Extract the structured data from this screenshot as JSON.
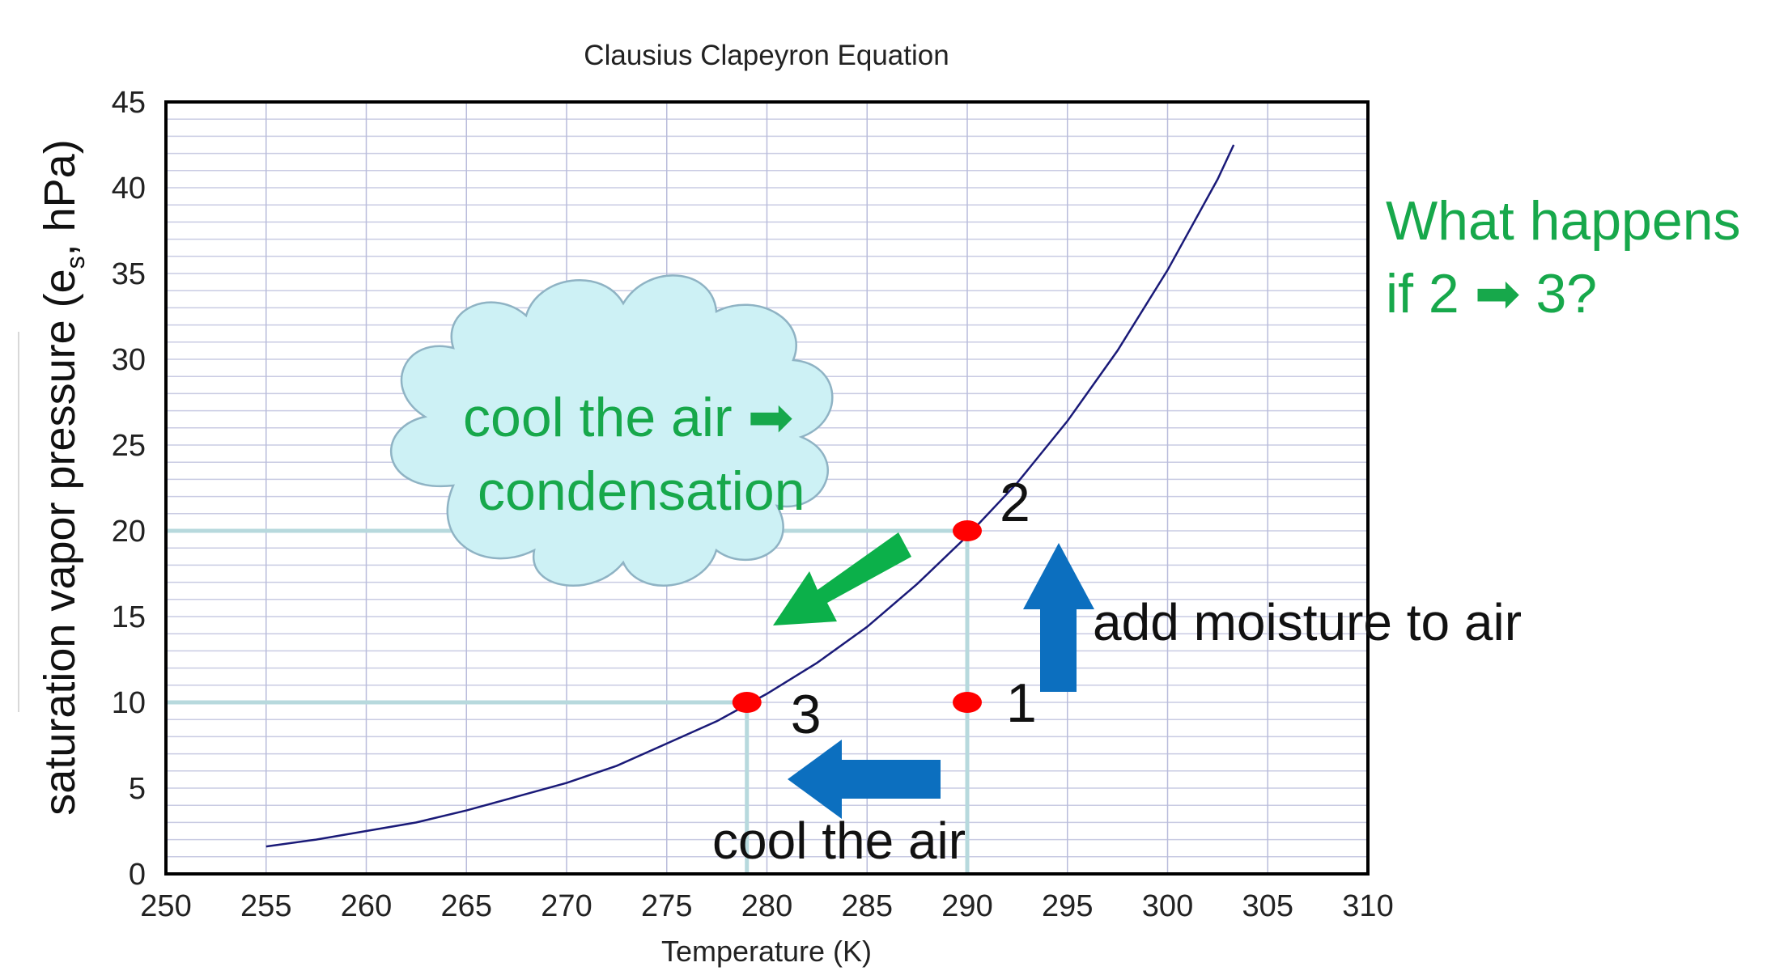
{
  "chart_data": {
    "type": "line",
    "title": "Clausius Clapeyron Equation",
    "xlabel": "Temperature (K)",
    "ylabel": "saturation vapor pressure (e",
    "ylabel_sub": "s",
    "ylabel_rest": ", hPa)",
    "xlim": [
      250,
      310
    ],
    "ylim": [
      0,
      45
    ],
    "x_ticks": [
      250,
      255,
      260,
      265,
      270,
      275,
      280,
      285,
      290,
      295,
      300,
      305,
      310
    ],
    "y_ticks": [
      0,
      5,
      10,
      15,
      20,
      25,
      30,
      35,
      40,
      45
    ],
    "grid": true,
    "series": [
      {
        "name": "saturation vapor pressure",
        "color": "#1a1a78",
        "x": [
          255,
          257.5,
          260,
          262.5,
          265,
          267.5,
          270,
          272.5,
          275,
          277.5,
          280,
          282.5,
          285,
          287.5,
          290,
          292.5,
          295,
          297.5,
          300,
          302.5,
          303.3
        ],
        "y": [
          1.6,
          2.0,
          2.5,
          3.0,
          3.7,
          4.5,
          5.3,
          6.3,
          7.6,
          8.9,
          10.5,
          12.3,
          14.4,
          16.9,
          19.7,
          22.8,
          26.4,
          30.5,
          35.2,
          40.5,
          42.5
        ]
      }
    ],
    "points": [
      {
        "label": "1",
        "x": 290,
        "y": 10,
        "color": "#ff0000"
      },
      {
        "label": "2",
        "x": 290,
        "y": 20,
        "color": "#ff0000"
      },
      {
        "label": "3",
        "x": 279,
        "y": 10,
        "color": "#ff0000"
      }
    ],
    "annotations": {
      "cloud_line1": "cool the air ➡",
      "cloud_line2": "condensation",
      "moisture_label": "add moisture to air",
      "cool_label": "cool the air",
      "question_line1": "What happens",
      "question_line2": "if 2 ➡ 3?"
    },
    "colors": {
      "guide": "#b7d9dd",
      "blue_arrow": "#0c6fbf",
      "green_arrow": "#0cb04a",
      "green_text": "#17a84b",
      "cloud_fill": "#cdf1f5",
      "cloud_stroke": "#8fb3c4"
    }
  }
}
